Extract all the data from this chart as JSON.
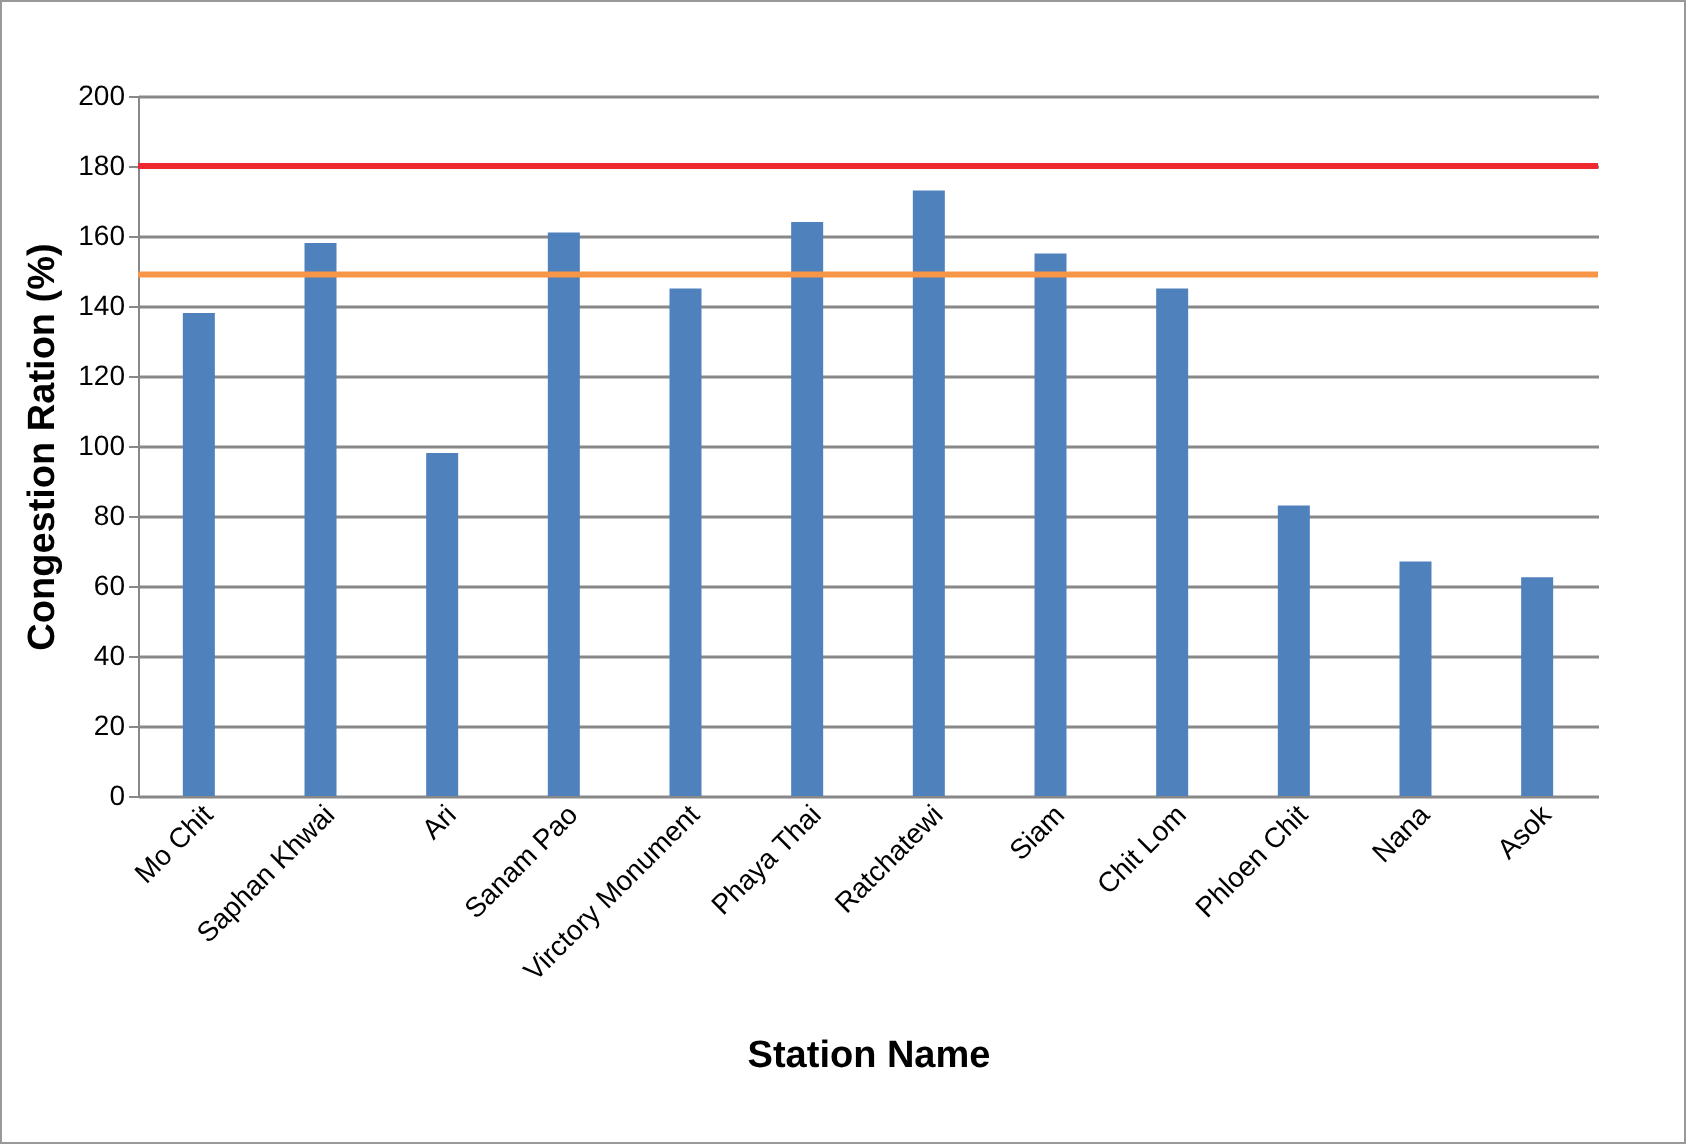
{
  "chart_data": {
    "type": "bar",
    "xlabel": "Station Name",
    "ylabel": "Congestion Ration (%)",
    "categories": [
      "Mo Chit",
      "Saphan Khwai",
      "Ari",
      "Sanam Pao",
      "Virctory Monument",
      "Phaya Thai",
      "Ratchatewi",
      "Siam",
      "Chit Lom",
      "Phloen Chit",
      "Nana",
      "Asok"
    ],
    "values": [
      138,
      158,
      98,
      161,
      145,
      164,
      173,
      155,
      145,
      83,
      67,
      62.5
    ],
    "color": "#4f81bd",
    "ylim": [
      0,
      200
    ],
    "yticks": [
      0,
      20,
      40,
      60,
      80,
      100,
      120,
      140,
      160,
      180,
      200
    ],
    "grid": "y",
    "ref_lines": [
      {
        "axis": "y",
        "value": 180,
        "color": "#ee2a2f"
      },
      {
        "axis": "y",
        "value": 149,
        "color": "#f79646"
      }
    ]
  }
}
